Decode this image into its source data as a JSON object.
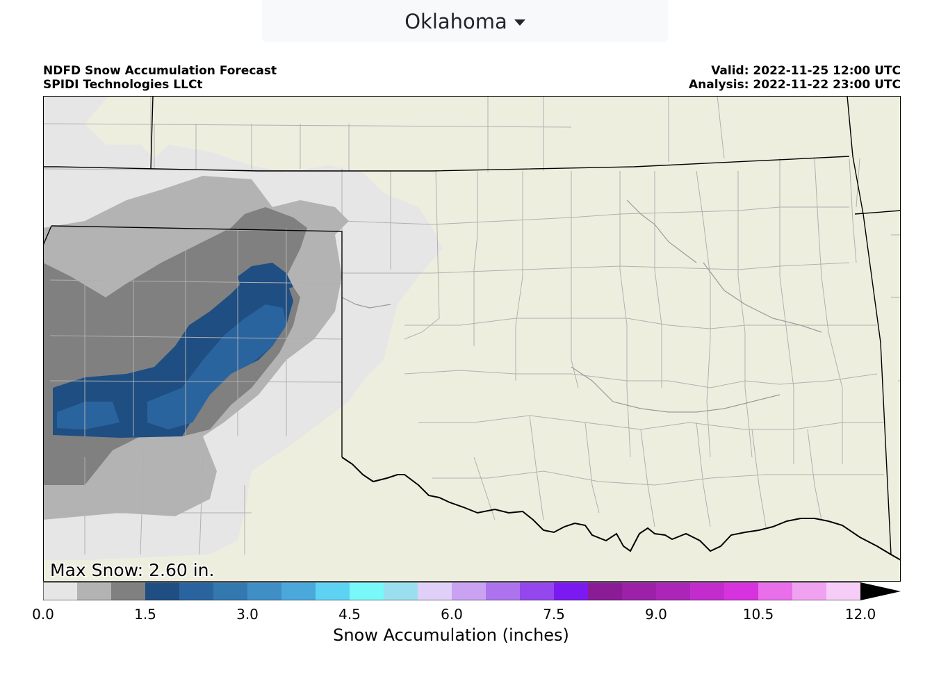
{
  "region_selector": {
    "label": "Oklahoma"
  },
  "header": {
    "title": "NDFD Snow Accumulation Forecast",
    "credit": "SPIDI Technologies LLCt",
    "valid": "Valid: 2022-11-25 12:00 UTC",
    "analysis": "Analysis: 2022-11-22 23:00 UTC"
  },
  "map": {
    "max_snow": "Max Snow: 2.60 in.",
    "land_color": "#eeeedf",
    "border_color": "#000000",
    "county_line_color": "#b0b0b0"
  },
  "colorbar": {
    "title": "Snow Accumulation (inches)",
    "min": 0.0,
    "max": 12.0,
    "step": 0.5,
    "extend": "max",
    "extend_color": "#000000",
    "tick_labels": [
      "0.0",
      "1.5",
      "3.0",
      "4.5",
      "6.0",
      "7.5",
      "9.0",
      "10.5",
      "12.0"
    ],
    "colors": [
      "#e6e6e6",
      "#b3b3b3",
      "#808080",
      "#1f4e82",
      "#2a649e",
      "#3478b0",
      "#3f8fc6",
      "#4ba8da",
      "#5ed2f3",
      "#78f8f8",
      "#9adff0",
      "#e0d0f8",
      "#c9a2f2",
      "#ad73ee",
      "#9447ec",
      "#7a1af0",
      "#8a1c96",
      "#9c20a8",
      "#ab26b8",
      "#c22ccc",
      "#d632de",
      "#e86eea",
      "#f0a2f0",
      "#f6cdf6"
    ]
  }
}
